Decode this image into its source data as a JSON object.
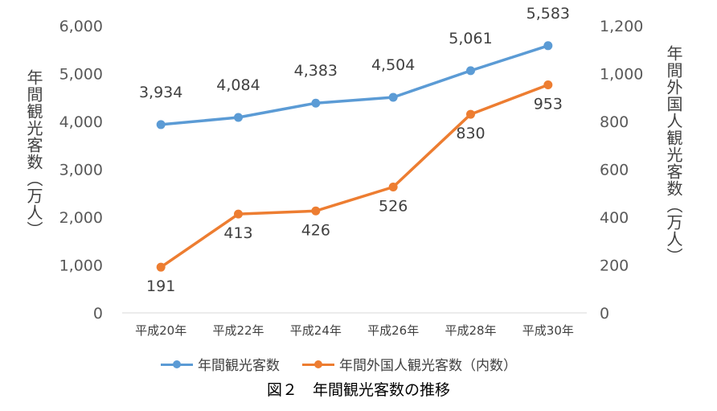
{
  "chart_data": {
    "type": "line",
    "caption": "図２　年間観光客数の推移",
    "categories": [
      "平成20年",
      "平成22年",
      "平成24年",
      "平成26年",
      "平成28年",
      "平成30年"
    ],
    "y_left": {
      "label": "年間観光客数（万人）",
      "range": [
        0,
        6000
      ],
      "ticks": [
        "0",
        "1,000",
        "2,000",
        "3,000",
        "4,000",
        "5,000",
        "6,000"
      ]
    },
    "y_right": {
      "label": "年間外国人観光客数（万人）",
      "range": [
        0,
        1200
      ],
      "ticks": [
        "0",
        "200",
        "400",
        "600",
        "800",
        "1,000",
        "1,200"
      ]
    },
    "series": [
      {
        "name": "年間観光客数",
        "axis": "left",
        "color": "#5B9BD5",
        "values": [
          3934,
          4084,
          4383,
          4504,
          5061,
          5583
        ],
        "labels": [
          "3,934",
          "4,084",
          "4,383",
          "4,504",
          "5,061",
          "5,583"
        ]
      },
      {
        "name": "年間外国人観光客数（内数）",
        "axis": "right",
        "color": "#ED7D31",
        "values": [
          191,
          413,
          426,
          526,
          830,
          953
        ],
        "labels": [
          "191",
          "413",
          "426",
          "526",
          "830",
          "953"
        ]
      }
    ],
    "grid": false,
    "legend": "bottom"
  }
}
